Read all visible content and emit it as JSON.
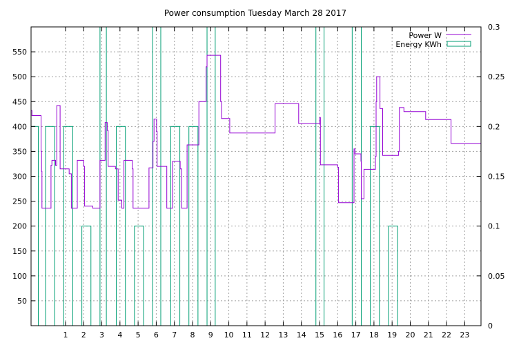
{
  "chart_data": {
    "type": "line",
    "title": "Power consumption Tuesday March 28 2017",
    "xlabel": "",
    "ylabel": "",
    "xlim": [
      -0.9,
      23.9
    ],
    "ylim_left": [
      0,
      600
    ],
    "ylim_right": [
      0,
      0.3
    ],
    "x_ticks": [
      1,
      2,
      3,
      4,
      5,
      6,
      7,
      8,
      9,
      10,
      11,
      12,
      13,
      14,
      15,
      16,
      17,
      18,
      19,
      20,
      21,
      22,
      23
    ],
    "y_left_ticks": [
      50,
      100,
      150,
      200,
      250,
      300,
      350,
      400,
      450,
      500,
      550
    ],
    "y_right_ticks": [
      0,
      0.05,
      0.1,
      0.15,
      0.2,
      0.25,
      0.3
    ],
    "grid": true,
    "legend_position": "top-right",
    "series": [
      {
        "name": "Power W",
        "axis": "left",
        "color": "#9400d3",
        "style": "step",
        "points": [
          [
            -0.9,
            432
          ],
          [
            -0.85,
            422
          ],
          [
            -0.4,
            422
          ],
          [
            -0.35,
            350
          ],
          [
            -0.32,
            310
          ],
          [
            -0.3,
            236
          ],
          [
            0.2,
            236
          ],
          [
            0.2,
            322
          ],
          [
            0.25,
            332
          ],
          [
            0.45,
            332
          ],
          [
            0.45,
            322
          ],
          [
            0.52,
            442
          ],
          [
            0.7,
            442
          ],
          [
            0.7,
            315
          ],
          [
            1.2,
            315
          ],
          [
            1.2,
            305
          ],
          [
            1.32,
            305
          ],
          [
            1.32,
            236
          ],
          [
            1.65,
            236
          ],
          [
            1.65,
            332
          ],
          [
            2.0,
            332
          ],
          [
            2.0,
            320
          ],
          [
            2.05,
            240
          ],
          [
            2.5,
            240
          ],
          [
            2.5,
            236
          ],
          [
            2.9,
            236
          ],
          [
            2.9,
            332
          ],
          [
            3.1,
            332
          ],
          [
            3.18,
            408
          ],
          [
            3.3,
            408
          ],
          [
            3.3,
            392
          ],
          [
            3.35,
            320
          ],
          [
            3.75,
            320
          ],
          [
            3.75,
            315
          ],
          [
            3.9,
            315
          ],
          [
            3.9,
            252
          ],
          [
            4.1,
            252
          ],
          [
            4.1,
            236
          ],
          [
            4.22,
            236
          ],
          [
            4.22,
            332
          ],
          [
            4.65,
            332
          ],
          [
            4.68,
            315
          ],
          [
            4.72,
            236
          ],
          [
            5.6,
            236
          ],
          [
            5.6,
            317
          ],
          [
            5.8,
            317
          ],
          [
            5.82,
            370
          ],
          [
            5.88,
            415
          ],
          [
            6.0,
            415
          ],
          [
            6.02,
            390
          ],
          [
            6.05,
            320
          ],
          [
            6.55,
            320
          ],
          [
            6.58,
            236
          ],
          [
            6.9,
            236
          ],
          [
            6.9,
            330
          ],
          [
            7.3,
            330
          ],
          [
            7.32,
            315
          ],
          [
            7.4,
            236
          ],
          [
            7.7,
            236
          ],
          [
            7.7,
            363
          ],
          [
            8.3,
            363
          ],
          [
            8.35,
            450
          ],
          [
            8.7,
            450
          ],
          [
            8.75,
            520
          ],
          [
            8.8,
            543
          ],
          [
            9.5,
            543
          ],
          [
            9.55,
            450
          ],
          [
            9.6,
            416
          ],
          [
            10.0,
            416
          ],
          [
            10.05,
            387
          ],
          [
            12.5,
            387
          ],
          [
            12.55,
            446
          ],
          [
            13.8,
            446
          ],
          [
            13.85,
            406
          ],
          [
            15.0,
            406
          ],
          [
            15.02,
            418
          ],
          [
            15.05,
            323
          ],
          [
            15.95,
            323
          ],
          [
            16.0,
            318
          ],
          [
            16.05,
            247
          ],
          [
            16.85,
            247
          ],
          [
            16.9,
            355
          ],
          [
            16.95,
            345
          ],
          [
            17.25,
            345
          ],
          [
            17.28,
            330
          ],
          [
            17.3,
            255
          ],
          [
            17.45,
            255
          ],
          [
            17.45,
            314
          ],
          [
            18.05,
            314
          ],
          [
            18.08,
            340
          ],
          [
            18.12,
            450
          ],
          [
            18.15,
            500
          ],
          [
            18.3,
            500
          ],
          [
            18.33,
            436
          ],
          [
            18.45,
            436
          ],
          [
            18.48,
            342
          ],
          [
            19.3,
            342
          ],
          [
            19.35,
            350
          ],
          [
            19.4,
            438
          ],
          [
            19.6,
            438
          ],
          [
            19.65,
            430
          ],
          [
            20.8,
            430
          ],
          [
            20.85,
            414
          ],
          [
            22.2,
            414
          ],
          [
            22.25,
            366
          ],
          [
            23.9,
            366
          ]
        ]
      },
      {
        "name": "Energy KWh",
        "axis": "right",
        "color": "#009e73",
        "style": "bars",
        "bars": [
          [
            -0.9,
            -0.5,
            0.2
          ],
          [
            -0.1,
            0.4,
            0.2
          ],
          [
            0.9,
            1.4,
            0.2
          ],
          [
            1.9,
            2.4,
            0.1
          ],
          [
            2.9,
            3.25,
            0.3
          ],
          [
            3.8,
            4.3,
            0.2
          ],
          [
            4.8,
            5.3,
            0.1
          ],
          [
            5.8,
            6.25,
            0.3
          ],
          [
            6.8,
            7.3,
            0.2
          ],
          [
            7.8,
            8.3,
            0.2
          ],
          [
            8.8,
            9.25,
            0.3
          ],
          [
            14.8,
            15.25,
            0.3
          ],
          [
            16.8,
            17.3,
            0.3
          ],
          [
            17.8,
            18.3,
            0.2
          ],
          [
            18.8,
            19.3,
            0.1
          ]
        ]
      }
    ]
  }
}
